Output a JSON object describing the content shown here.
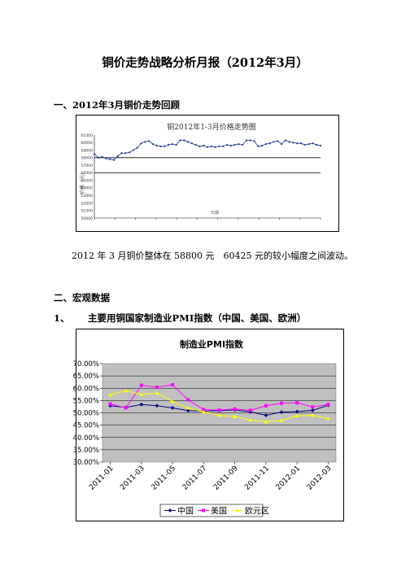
{
  "document": {
    "title": "铜价走势战略分析月报（2012年3月）",
    "section1_heading": "一、2012年3月铜价走势回顾",
    "paragraph": "2012 年 3 月铜价整体在 58800 元　60425 元的较小幅度之间波动。",
    "section2_heading": "二、宏观数据",
    "sub1_number": "1、",
    "sub1_text": "主要用铜国家制造业PMI指数（中国、美国、欧洲）"
  },
  "chart_data": [
    {
      "type": "line",
      "title": "铜2012年1-3月价格走势图",
      "ylabel": "价格（元）",
      "xlabel": "日期",
      "ylim": [
        50000,
        61000
      ],
      "yticks": [
        61000,
        60000,
        59000,
        58000,
        57000,
        56000,
        55000,
        54000,
        53000,
        52000,
        51000,
        50000
      ],
      "reference_lines": [
        58000,
        56000
      ],
      "series": [
        {
          "color": "#1f3a93",
          "values": [
            58500,
            58000,
            58100,
            57900,
            57800,
            57700,
            58200,
            58600,
            58600,
            58700,
            59000,
            59300,
            59900,
            60100,
            60200,
            59800,
            59600,
            59500,
            59500,
            59700,
            59800,
            59700,
            60300,
            60300,
            60100,
            59900,
            59700,
            59500,
            59600,
            59400,
            59500,
            59400,
            59500,
            59500,
            59700,
            59600,
            59700,
            59800,
            59700,
            60300,
            60300,
            60200,
            59500,
            59600,
            59800,
            59900,
            60100,
            60200,
            59800,
            60300,
            60100,
            60000,
            59900,
            59900,
            59700,
            59800,
            59900,
            59700,
            59600
          ]
        }
      ]
    },
    {
      "type": "line",
      "title": "制造业PMI指数",
      "categories": [
        "2011-01",
        "2011-02",
        "2011-03",
        "2011-04",
        "2011-05",
        "2011-06",
        "2011-07",
        "2011-08",
        "2011-09",
        "2011-10",
        "2011-11",
        "2011-12",
        "2012-01",
        "2012-02",
        "2012-03"
      ],
      "tick_labels": [
        "2011-01",
        "2011-03",
        "2011-05",
        "2011-07",
        "2011-09",
        "2011-11",
        "2012-01",
        "2012-03"
      ],
      "ytick_labels": [
        "70.00%",
        "65.00%",
        "60.00%",
        "55.00%",
        "50.00%",
        "45.00%",
        "40.00%",
        "35.00%",
        "30.00%"
      ],
      "ylim": [
        30,
        70
      ],
      "grid": true,
      "legend_position": "bottom",
      "series": [
        {
          "name": "中国",
          "color": "#000080",
          "marker": "diamond",
          "values": [
            52.9,
            52.2,
            53.4,
            52.9,
            52.0,
            50.9,
            50.7,
            50.9,
            51.2,
            50.4,
            49.0,
            50.3,
            50.5,
            51.0,
            53.1
          ]
        },
        {
          "name": "美国",
          "color": "#ff00ff",
          "marker": "square",
          "values": [
            53.6,
            52.0,
            61.2,
            60.4,
            61.4,
            55.3,
            51.3,
            51.1,
            51.6,
            51.0,
            52.9,
            53.9,
            54.1,
            52.4,
            53.4
          ]
        },
        {
          "name": "欧元区",
          "color": "#ffff00",
          "marker": "triangle",
          "values": [
            57.3,
            59.0,
            57.5,
            58.0,
            54.6,
            52.0,
            50.4,
            49.0,
            48.5,
            47.1,
            46.4,
            46.9,
            48.8,
            49.0,
            47.7
          ]
        }
      ]
    }
  ]
}
